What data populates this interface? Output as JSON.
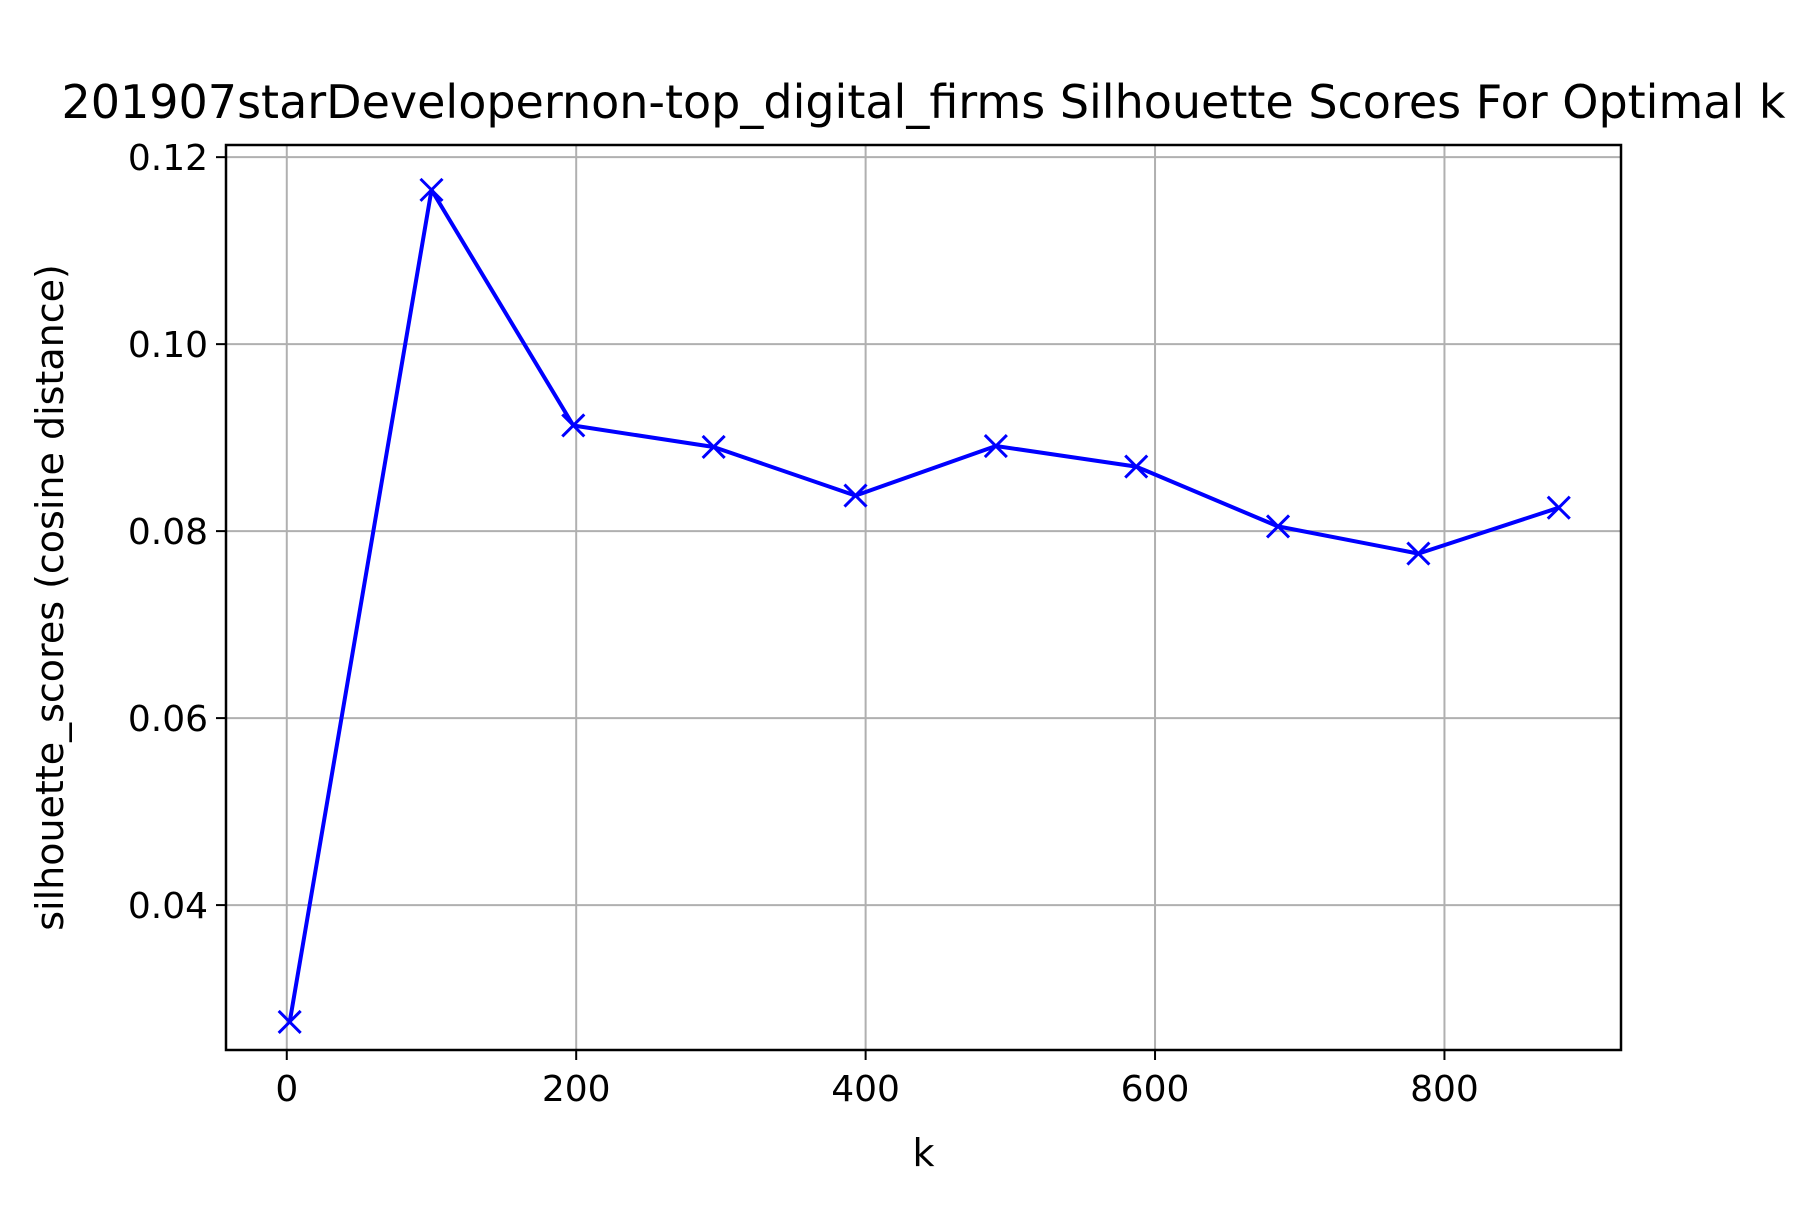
{
  "chart_data": {
    "type": "line",
    "title": "201907starDevelopernon-top_digital_firms Silhouette Scores For Optimal k",
    "xlabel": "k",
    "ylabel": "silhouette_scores (cosine distance)",
    "xlim": [
      -42,
      922
    ],
    "ylim": [
      0.0245,
      0.1213
    ],
    "x_ticks": [
      0,
      200,
      400,
      600,
      800
    ],
    "x_tick_labels": [
      "0",
      "200",
      "400",
      "600",
      "800"
    ],
    "y_ticks": [
      0.04,
      0.06,
      0.08,
      0.1,
      0.12
    ],
    "y_tick_labels": [
      "0.04",
      "0.06",
      "0.08",
      "0.10",
      "0.12"
    ],
    "grid": true,
    "legend": "none",
    "series": [
      {
        "color": "#0000ff",
        "marker": "x",
        "x": [
          2,
          100,
          198,
          295,
          393,
          490,
          587,
          685,
          782,
          879
        ],
        "y": [
          0.0275,
          0.1165,
          0.0913,
          0.089,
          0.0838,
          0.0891,
          0.0869,
          0.0805,
          0.0776,
          0.0825
        ]
      }
    ]
  }
}
